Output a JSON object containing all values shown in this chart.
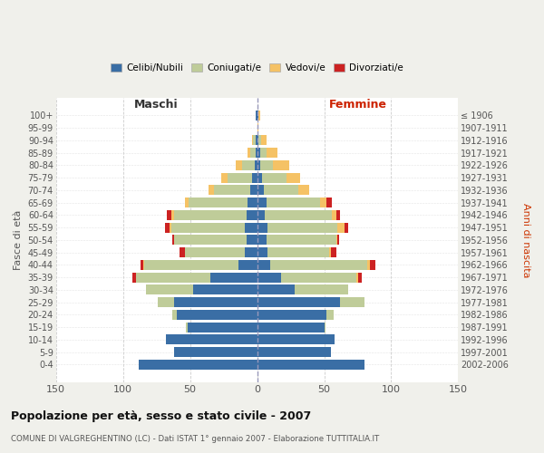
{
  "age_groups": [
    "0-4",
    "5-9",
    "10-14",
    "15-19",
    "20-24",
    "25-29",
    "30-34",
    "35-39",
    "40-44",
    "45-49",
    "50-54",
    "55-59",
    "60-64",
    "65-69",
    "70-74",
    "75-79",
    "80-84",
    "85-89",
    "90-94",
    "95-99",
    "100+"
  ],
  "birth_years": [
    "2002-2006",
    "1997-2001",
    "1992-1996",
    "1987-1991",
    "1982-1986",
    "1977-1981",
    "1972-1976",
    "1967-1971",
    "1962-1966",
    "1957-1961",
    "1952-1956",
    "1947-1951",
    "1942-1946",
    "1937-1941",
    "1932-1936",
    "1927-1931",
    "1922-1926",
    "1917-1921",
    "1912-1916",
    "1907-1911",
    "≤ 1906"
  ],
  "colors": {
    "celibe": "#3A6EA5",
    "coniugato": "#BFCC99",
    "vedovo": "#F5C265",
    "divorziato": "#CC2222"
  },
  "maschi": {
    "celibe": [
      88,
      62,
      68,
      52,
      60,
      62,
      48,
      35,
      14,
      9,
      8,
      9,
      8,
      7,
      5,
      4,
      2,
      1,
      1,
      0,
      1
    ],
    "coniugato": [
      0,
      0,
      0,
      1,
      3,
      12,
      35,
      55,
      70,
      45,
      54,
      55,
      54,
      44,
      27,
      18,
      9,
      4,
      2,
      0,
      0
    ],
    "vedovo": [
      0,
      0,
      0,
      0,
      0,
      0,
      0,
      0,
      1,
      0,
      0,
      1,
      2,
      3,
      4,
      5,
      5,
      2,
      1,
      0,
      0
    ],
    "divorziato": [
      0,
      0,
      0,
      0,
      0,
      0,
      0,
      3,
      2,
      4,
      1,
      4,
      3,
      0,
      0,
      0,
      0,
      0,
      0,
      0,
      0
    ]
  },
  "femmine": {
    "nubile": [
      80,
      55,
      58,
      50,
      52,
      62,
      28,
      18,
      10,
      8,
      7,
      8,
      6,
      7,
      5,
      4,
      2,
      2,
      1,
      0,
      1
    ],
    "coniugata": [
      0,
      0,
      0,
      1,
      5,
      18,
      40,
      56,
      72,
      46,
      52,
      52,
      50,
      40,
      26,
      18,
      10,
      5,
      2,
      0,
      0
    ],
    "vedova": [
      0,
      0,
      0,
      0,
      0,
      0,
      0,
      1,
      2,
      1,
      1,
      5,
      3,
      5,
      8,
      10,
      12,
      8,
      4,
      1,
      1
    ],
    "divorziata": [
      0,
      0,
      0,
      0,
      0,
      0,
      0,
      3,
      4,
      4,
      1,
      3,
      3,
      4,
      0,
      0,
      0,
      0,
      0,
      0,
      0
    ]
  },
  "xlim": [
    -150,
    150
  ],
  "xticks": [
    -150,
    -100,
    -50,
    0,
    50,
    100,
    150
  ],
  "xticklabels": [
    "150",
    "100",
    "50",
    "0",
    "50",
    "100",
    "150"
  ],
  "ylabel_left": "Fasce di età",
  "ylabel_right": "Anni di nascita",
  "title": "Popolazione per età, sesso e stato civile - 2007",
  "subtitle": "COMUNE DI VALGREGHENTINO (LC) - Dati ISTAT 1° gennaio 2007 - Elaborazione TUTTITALIA.IT",
  "legend_labels": [
    "Celibi/Nubili",
    "Coniugati/e",
    "Vedovi/e",
    "Divorziati/e"
  ],
  "legend_colors": [
    "#3A6EA5",
    "#BFCC99",
    "#F5C265",
    "#CC2222"
  ],
  "bg_color": "#f0f0eb",
  "plot_bg": "#ffffff",
  "grid_color": "#cccccc"
}
